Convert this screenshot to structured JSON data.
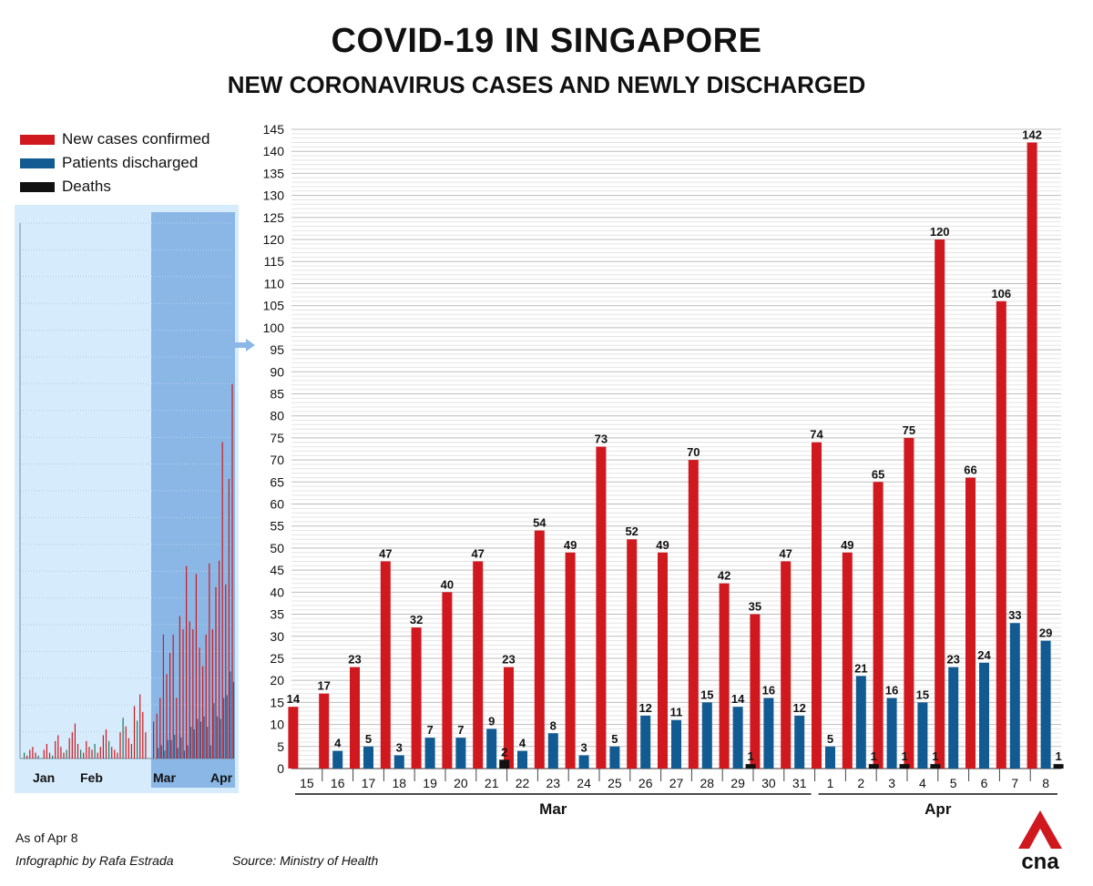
{
  "title": "COVID-19 IN SINGAPORE",
  "subtitle": "NEW CORONAVIRUS CASES AND NEWLY DISCHARGED",
  "legend": [
    {
      "label": "New cases confirmed",
      "color": "#d0181f"
    },
    {
      "label": "Patients discharged",
      "color": "#125a92"
    },
    {
      "label": "Deaths",
      "color": "#111111"
    }
  ],
  "overview": {
    "months": [
      "Jan",
      "Feb",
      "Mar",
      "Apr"
    ]
  },
  "footer": {
    "as_of": "As of Apr 8",
    "credit": "Infographic by Rafa Estrada",
    "source": "Source: Ministry of Health",
    "logo": "cna"
  },
  "chart_data": {
    "type": "bar",
    "x_labels": [
      "15",
      "16",
      "17",
      "18",
      "19",
      "20",
      "21",
      "22",
      "23",
      "24",
      "25",
      "26",
      "27",
      "28",
      "29",
      "30",
      "31",
      "1",
      "2",
      "3",
      "4",
      "5",
      "6",
      "7",
      "8"
    ],
    "month_groups": [
      {
        "label": "Mar",
        "from": 0,
        "to": 16
      },
      {
        "label": "Apr",
        "from": 17,
        "to": 24
      }
    ],
    "series": [
      {
        "name": "New cases confirmed",
        "color": "#d0181f",
        "values": [
          14,
          17,
          23,
          47,
          32,
          40,
          47,
          23,
          54,
          49,
          73,
          52,
          49,
          70,
          42,
          35,
          47,
          74,
          49,
          65,
          75,
          120,
          66,
          106,
          142
        ]
      },
      {
        "name": "Patients discharged",
        "color": "#125a92",
        "values": [
          null,
          4,
          5,
          3,
          7,
          7,
          9,
          4,
          8,
          3,
          5,
          12,
          11,
          15,
          14,
          16,
          12,
          5,
          21,
          16,
          15,
          23,
          24,
          33,
          29
        ]
      },
      {
        "name": "Deaths",
        "color": "#111111",
        "values": [
          null,
          null,
          null,
          null,
          null,
          null,
          2,
          null,
          null,
          null,
          null,
          null,
          null,
          null,
          1,
          null,
          null,
          null,
          1,
          1,
          1,
          null,
          null,
          null,
          1
        ]
      }
    ],
    "ylim": [
      0,
      145
    ],
    "ytick_step": 5,
    "grid": true
  }
}
